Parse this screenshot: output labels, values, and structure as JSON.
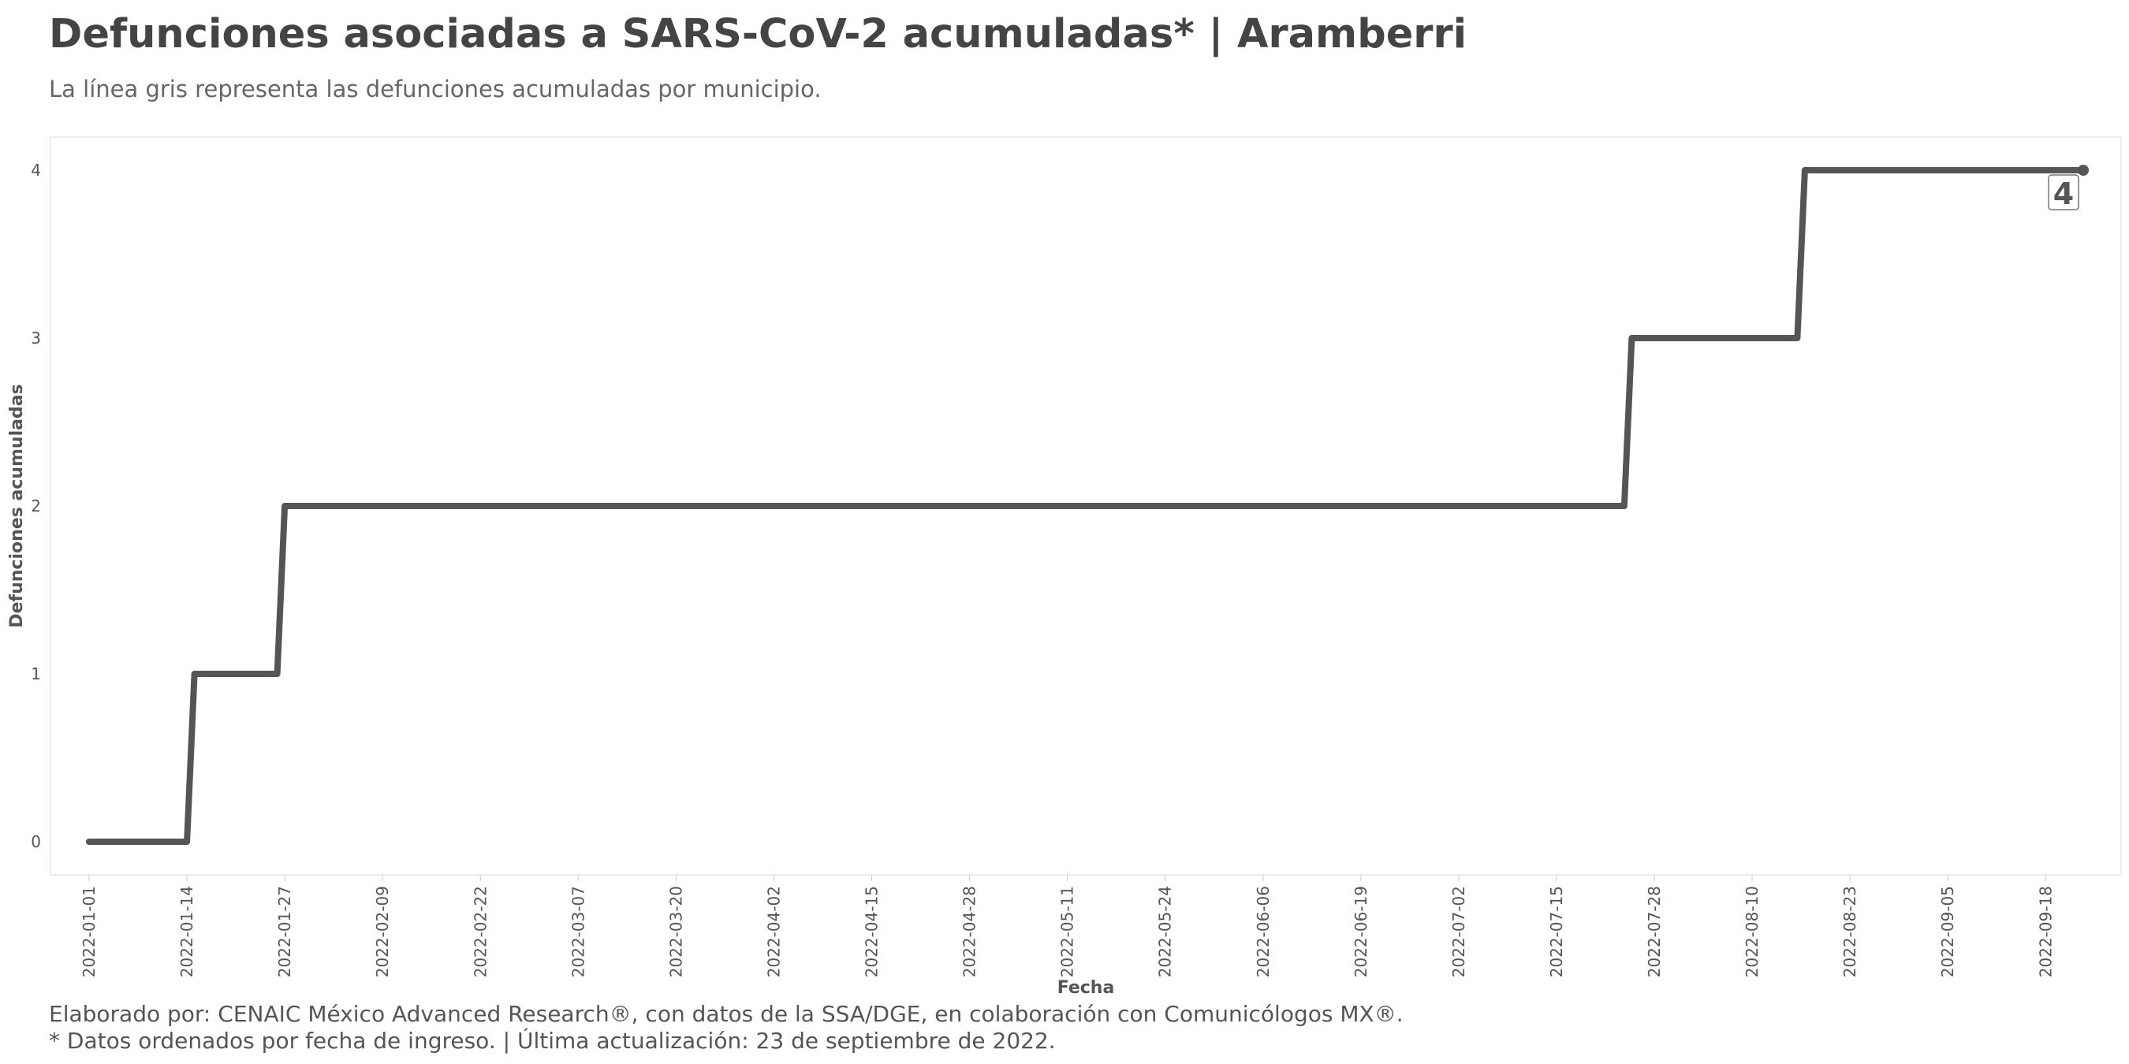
{
  "header": {
    "title": "Defunciones asociadas a SARS-CoV-2 acumuladas* | Aramberri",
    "subtitle": "La línea gris representa las defunciones acumuladas por municipio."
  },
  "footer": {
    "credit": "Elaborado por: CENAIC México Advanced Research®, con datos de la SSA/DGE, en colaboración con Comunicólogos MX®.",
    "note": "* Datos ordenados por fecha de ingreso. | Última actualización: 23 de septiembre de 2022."
  },
  "colors": {
    "line": "#555555",
    "panel_border": "#e6e6e6",
    "text": "#444444"
  },
  "chart_data": {
    "type": "line",
    "step": true,
    "title": "Defunciones asociadas a SARS-CoV-2 acumuladas* | Aramberri",
    "subtitle": "La línea gris representa las defunciones acumuladas por municipio.",
    "xlabel": "Fecha",
    "ylabel": "Defunciones acumuladas",
    "xlim": [
      "2022-01-01",
      "2022-09-23"
    ],
    "ylim": [
      0,
      4
    ],
    "grid": false,
    "legend": "none",
    "x_ticks": [
      "2022-01-01",
      "2022-01-14",
      "2022-01-27",
      "2022-02-09",
      "2022-02-22",
      "2022-03-07",
      "2022-03-20",
      "2022-04-02",
      "2022-04-15",
      "2022-04-28",
      "2022-05-11",
      "2022-05-24",
      "2022-06-06",
      "2022-06-19",
      "2022-07-02",
      "2022-07-15",
      "2022-07-28",
      "2022-08-10",
      "2022-08-23",
      "2022-09-05",
      "2022-09-18"
    ],
    "y_ticks": [
      "0",
      "1",
      "2",
      "3",
      "4"
    ],
    "series": [
      {
        "x": [
          "2022-01-01",
          "2022-01-14",
          "2022-01-15",
          "2022-01-26",
          "2022-01-27",
          "2022-07-24",
          "2022-07-25",
          "2022-08-16",
          "2022-08-17",
          "2022-09-23"
        ],
        "values": [
          0,
          0,
          1,
          1,
          2,
          2,
          3,
          3,
          4,
          4
        ]
      }
    ],
    "end_label": "4"
  }
}
